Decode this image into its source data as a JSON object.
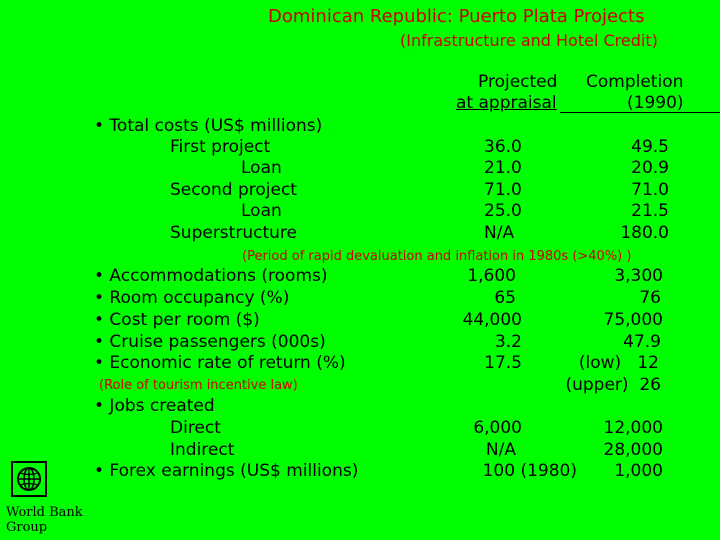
{
  "title": "Dominican Republic: Puerto Plata Projects",
  "subtitle": "(Infrastructure and Hotel Credit)",
  "columns": {
    "projected_1": "Projected",
    "projected_2": "at appraisal",
    "completion_1": "Completion",
    "completion_2": "(1990)"
  },
  "costs": {
    "heading": "• Total costs (US$ millions)",
    "rows": [
      {
        "label": "First project",
        "projected": "36.0",
        "completion": "49.5"
      },
      {
        "label": "Loan",
        "projected": "21.0",
        "completion": "20.9"
      },
      {
        "label": "Second project",
        "projected": "71.0",
        "completion": "71.0"
      },
      {
        "label": "Loan",
        "projected": "25.0",
        "completion": "21.5"
      },
      {
        "label": "Superstructure",
        "projected": "N/A",
        "completion": "180.0"
      }
    ]
  },
  "note_devaluation": "(Period of rapid devaluation and inflation in 1980s (>40%) )",
  "indicators": [
    {
      "label": "• Accommodations (rooms)",
      "projected": "1,600",
      "completion": "3,300"
    },
    {
      "label": "• Room occupancy (%)",
      "projected": "65",
      "completion": "76"
    },
    {
      "label": "• Cost per room ($)",
      "projected": "44,000",
      "completion": "75,000"
    },
    {
      "label": "• Cruise passengers (000s)",
      "projected": "3.2",
      "completion": "47.9"
    },
    {
      "label": "• Economic rate of return (%)",
      "projected": "17.5",
      "completion": "(low)   12"
    }
  ],
  "note_tourism": "(Role of tourism incentive law)",
  "upper_value": "(upper)  26",
  "jobs": {
    "heading": "• Jobs created",
    "rows": [
      {
        "label": "Direct",
        "projected": "6,000",
        "completion": "12,000"
      },
      {
        "label": "Indirect",
        "projected": "N/A",
        "completion": "28,000"
      }
    ]
  },
  "forex": {
    "label": "• Forex earnings (US$ millions)",
    "projected": "100 (1980)",
    "completion": "1,000"
  },
  "logo_text_1": "World Bank",
  "logo_text_2": "Group"
}
